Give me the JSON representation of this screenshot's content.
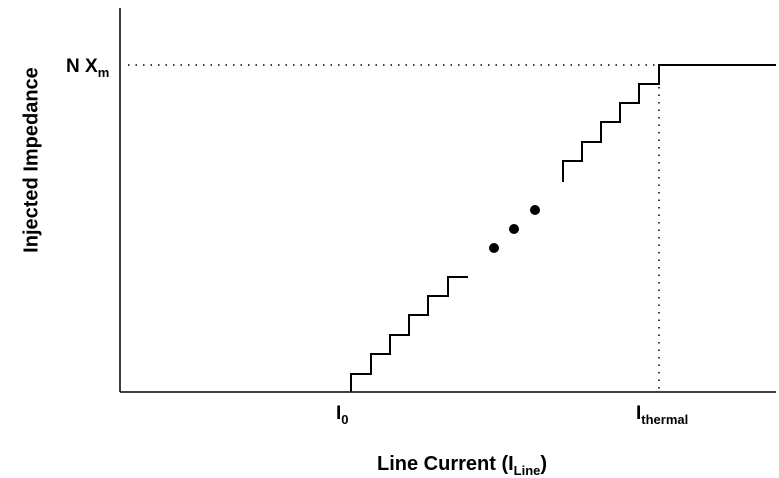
{
  "axes": {
    "y_label": "Injected Impedance",
    "x_label_main": "Line Current (I",
    "x_label_sub": "Line",
    "x_label_close": ")"
  },
  "markers": {
    "y_level_main": "N X",
    "y_level_sub": "m",
    "x_start_main": "I",
    "x_start_sub": "0",
    "x_thermal_main": "I",
    "x_thermal_sub": "thermal"
  },
  "colors": {
    "line": "#000000",
    "background": "#ffffff"
  }
}
